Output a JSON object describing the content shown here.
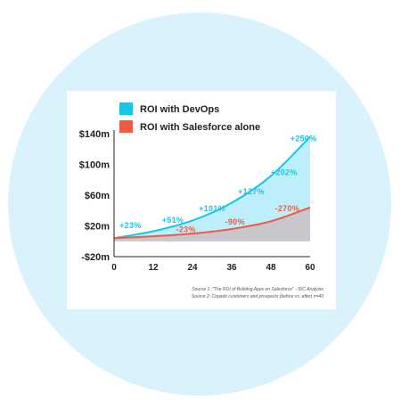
{
  "colors": {
    "background_circle": "#d9f2fc",
    "devops": "#17c5e8",
    "devops_fill": "#bdeffb",
    "salesforce": "#f05a45",
    "salesforce_fill": "#c9c6cc"
  },
  "chart_data": {
    "type": "area",
    "x": [
      0,
      12,
      24,
      36,
      48,
      60
    ],
    "xticks": [
      "0",
      "12",
      "24",
      "36",
      "48",
      "60"
    ],
    "yticks": [
      "$140m",
      "$100m",
      "$60m",
      "$20m",
      "-$20m"
    ],
    "ylim": [
      -20,
      140
    ],
    "xlim": [
      0,
      60
    ],
    "legend_position": "top-left",
    "series": [
      {
        "name": "ROI with DevOps",
        "values": [
          4,
          13,
          27,
          50,
          85,
          136
        ]
      },
      {
        "name": "ROI with Salesforce alone",
        "values": [
          4,
          6.5,
          10,
          16,
          26,
          44
        ]
      }
    ],
    "annotations": [
      {
        "text": "+23%",
        "series": 0,
        "x": 5,
        "y": 17
      },
      {
        "text": "+51%",
        "series": 0,
        "x": 18,
        "y": 24
      },
      {
        "text": "+101%",
        "series": 0,
        "x": 30,
        "y": 39
      },
      {
        "text": "+127%",
        "series": 0,
        "x": 42,
        "y": 61
      },
      {
        "text": "+202%",
        "series": 0,
        "x": 52,
        "y": 86
      },
      {
        "text": "+250%",
        "series": 0,
        "x": 58,
        "y": 130
      },
      {
        "text": "-23%",
        "series": 1,
        "x": 22,
        "y": 12
      },
      {
        "text": "-90%",
        "series": 1,
        "x": 37,
        "y": 22
      },
      {
        "text": "-270%",
        "series": 1,
        "x": 53,
        "y": 39
      }
    ]
  },
  "sources": [
    "Source 1: \"The ROI of Building Apps on Salesforce\" - IDC Analysts",
    "Source 2: Copado customers and prospects (before vs. after) n=40"
  ]
}
